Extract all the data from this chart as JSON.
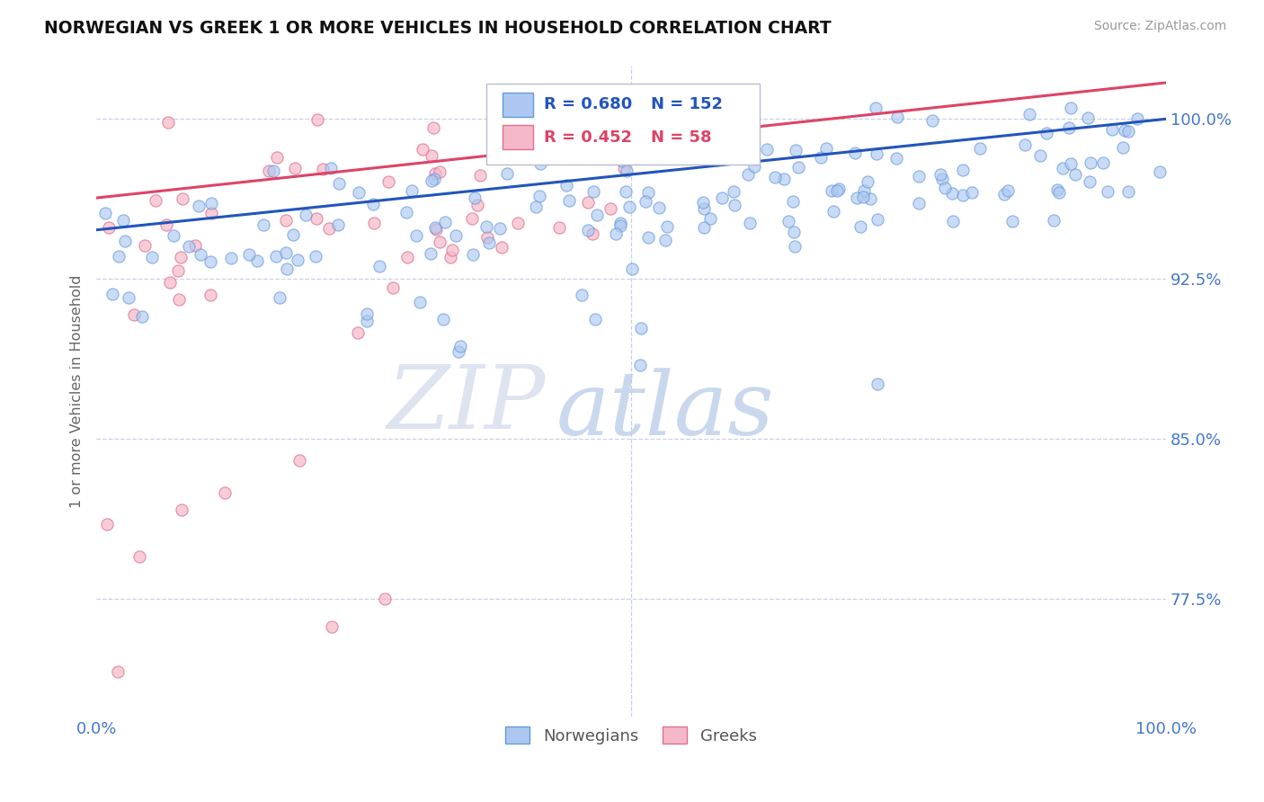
{
  "title": "NORWEGIAN VS GREEK 1 OR MORE VEHICLES IN HOUSEHOLD CORRELATION CHART",
  "source": "Source: ZipAtlas.com",
  "ylabel": "1 or more Vehicles in Household",
  "xlim": [
    0.0,
    1.0
  ],
  "ylim": [
    0.72,
    1.025
  ],
  "yticks": [
    0.775,
    0.85,
    0.925,
    1.0
  ],
  "ytick_labels": [
    "77.5%",
    "85.0%",
    "92.5%",
    "100.0%"
  ],
  "norwegian_R": 0.68,
  "norwegian_N": 152,
  "greek_R": 0.452,
  "greek_N": 58,
  "blue_scatter_color": "#adc8f0",
  "blue_edge_color": "#6699dd",
  "pink_scatter_color": "#f5b8c8",
  "pink_edge_color": "#e07090",
  "blue_line_color": "#2255bb",
  "pink_line_color": "#dd4466",
  "axis_color": "#4477cc",
  "title_color": "#111111",
  "watermark_zip": "ZIP",
  "watermark_atlas": "atlas",
  "background_color": "#ffffff",
  "grid_color": "#c8d0e8",
  "legend_label_norwegian": "Norwegians",
  "legend_label_greek": "Greeks"
}
